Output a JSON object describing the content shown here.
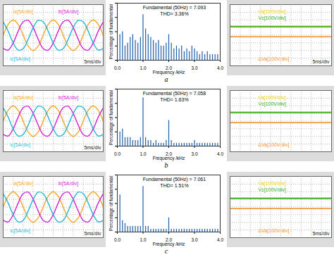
{
  "chart_data": [
    {
      "type": "line",
      "x": [
        0,
        2.5,
        5,
        7.5,
        10,
        12.5,
        15,
        17.5,
        20,
        22.5,
        25,
        27.5,
        30,
        32.5,
        35,
        37.5,
        40,
        42.5,
        45,
        47.5,
        50
      ],
      "series": [
        {
          "name": "ia[5A/div]",
          "color": "#f5a623",
          "values": [
            0,
            7.1,
            10,
            7.1,
            0,
            -7.1,
            -10,
            -7.1,
            0,
            7.1,
            10,
            7.1,
            0,
            -7.1,
            -10,
            -7.1,
            0,
            7.1,
            10,
            7.1,
            0
          ]
        },
        {
          "name": "ib[5A/div]",
          "color": "#d21fd2",
          "values": [
            -8.7,
            -9.7,
            -5,
            2.6,
            8.7,
            9.7,
            5,
            -2.6,
            -8.7,
            -9.7,
            -5,
            2.6,
            8.7,
            9.7,
            5,
            -2.6,
            -8.7,
            -9.7,
            -5,
            2.6,
            8.7
          ]
        },
        {
          "name": "ic[5A/div]",
          "color": "#1fb5d2",
          "values": [
            8.7,
            2.6,
            -5,
            -9.7,
            -8.7,
            -2.6,
            5,
            9.7,
            8.7,
            2.6,
            -5,
            -9.7,
            -8.7,
            -2.6,
            5,
            9.7,
            8.7,
            2.6,
            -5,
            -9.7,
            -8.7
          ]
        }
      ],
      "xlim": [
        0,
        50
      ],
      "ylim": [
        -20,
        20
      ],
      "xticks": [
        0,
        5,
        10,
        15,
        20,
        25,
        30,
        35,
        40,
        45,
        50
      ],
      "yticks": [
        -20,
        -15,
        -10,
        -5,
        0,
        5,
        10,
        15,
        20
      ],
      "grid": true,
      "tick_labels": false,
      "annotations": [
        "5ms/div"
      ]
    },
    {
      "type": "bar",
      "x": [
        0.1,
        0.2,
        0.3,
        0.4,
        0.5,
        0.6,
        0.7,
        0.8,
        0.9,
        1.0,
        1.1,
        1.2,
        1.3,
        1.4,
        1.5,
        1.6,
        1.7,
        1.8,
        1.9,
        2.0,
        2.1,
        2.2,
        2.3,
        2.4,
        2.5,
        2.6,
        2.7,
        2.8,
        2.9,
        3.0,
        3.1,
        3.2,
        3.3,
        3.4,
        3.5,
        3.6,
        3.7,
        3.8,
        3.9
      ],
      "values": [
        0.9,
        1.0,
        0.5,
        0.6,
        0.8,
        0.9,
        0.7,
        0.6,
        0.8,
        1.6,
        1.1,
        0.9,
        0.8,
        0.7,
        0.6,
        0.7,
        0.5,
        0.5,
        0.6,
        0.9,
        0.6,
        0.4,
        0.5,
        0.4,
        0.5,
        0.3,
        0.4,
        0.3,
        0.5,
        0.4,
        0.3,
        0.2,
        0.3,
        0.2,
        0.3,
        0.2,
        0.2,
        0.2,
        0.2
      ],
      "color": "#1f5fa8",
      "xlim": [
        0,
        4
      ],
      "ylim": [
        0,
        2
      ],
      "xticks": [
        0,
        1,
        2,
        3,
        4
      ],
      "yticks": [
        0,
        0.5,
        1,
        1.5,
        2
      ],
      "tick_labels": "x",
      "xlabel": "Frequency /kHz",
      "ylabel": "Percentage of fundamental",
      "annotations": [
        "Fundamental (50Hz) = 7.093",
        "THD= 3.36%"
      ],
      "caption": "a"
    },
    {
      "type": "line",
      "x": [
        0,
        50
      ],
      "series": [
        {
          "name": "Va[100V/div]",
          "color": "#e6c800",
          "values": [
            120,
            120
          ]
        },
        {
          "name": "Vc[100V/div]",
          "color": "#22aa22",
          "values": [
            110,
            110
          ]
        },
        {
          "name": "ΔVa[100V/div]",
          "color": "#f08c1e",
          "values": [
            -20,
            -20
          ]
        }
      ],
      "xlim": [
        0,
        50
      ],
      "ylim": [
        -400,
        400
      ],
      "xticks": [
        0,
        5,
        10,
        15,
        20,
        25,
        30,
        35,
        40,
        45,
        50
      ],
      "yticks": [
        -400,
        -300,
        -200,
        -100,
        0,
        100,
        200,
        300,
        400
      ],
      "grid": true,
      "tick_labels": false,
      "annotations": [
        "5ms/div"
      ]
    },
    {
      "type": "line",
      "x": [
        0,
        2.5,
        5,
        7.5,
        10,
        12.5,
        15,
        17.5,
        20,
        22.5,
        25,
        27.5,
        30,
        32.5,
        35,
        37.5,
        40,
        42.5,
        45,
        47.5,
        50
      ],
      "series": [
        {
          "name": "ia[5A/div]",
          "color": "#f5a623",
          "values": [
            0,
            7.1,
            10,
            7.1,
            0,
            -7.1,
            -10,
            -7.1,
            0,
            7.1,
            10,
            7.1,
            0,
            -7.1,
            -10,
            -7.1,
            0,
            7.1,
            10,
            7.1,
            0
          ]
        },
        {
          "name": "ib[5A/div]",
          "color": "#d21fd2",
          "values": [
            -8.7,
            -9.7,
            -5,
            2.6,
            8.7,
            9.7,
            5,
            -2.6,
            -8.7,
            -9.7,
            -5,
            2.6,
            8.7,
            9.7,
            5,
            -2.6,
            -8.7,
            -9.7,
            -5,
            2.6,
            8.7
          ]
        },
        {
          "name": "ic[5A/div]",
          "color": "#1fb5d2",
          "values": [
            8.7,
            2.6,
            -5,
            -9.7,
            -8.7,
            -2.6,
            5,
            9.7,
            8.7,
            2.6,
            -5,
            -9.7,
            -8.7,
            -2.6,
            5,
            9.7,
            8.7,
            2.6,
            -5,
            -9.7,
            -8.7
          ]
        }
      ],
      "xlim": [
        0,
        50
      ],
      "ylim": [
        -20,
        20
      ],
      "xticks": [
        0,
        5,
        10,
        15,
        20,
        25,
        30,
        35,
        40,
        45,
        50
      ],
      "yticks": [
        -20,
        -15,
        -10,
        -5,
        0,
        5,
        10,
        15,
        20
      ],
      "grid": true,
      "tick_labels": false,
      "annotations": [
        "5ms/div"
      ]
    },
    {
      "type": "bar",
      "x": [
        0.1,
        0.2,
        0.3,
        0.4,
        0.5,
        0.6,
        0.7,
        0.8,
        0.9,
        1.0,
        1.1,
        1.2,
        1.3,
        1.4,
        1.5,
        1.6,
        1.7,
        1.8,
        1.9,
        2.0,
        2.1,
        2.2,
        2.3,
        2.4,
        2.5,
        2.6,
        2.7,
        2.8,
        2.9,
        3.0,
        3.1,
        3.2,
        3.3,
        3.4,
        3.5,
        3.6,
        3.7,
        3.8,
        3.9
      ],
      "values": [
        0.5,
        0.6,
        0.3,
        0.3,
        0.3,
        0.2,
        0.2,
        0.2,
        0.3,
        1.7,
        0.3,
        0.2,
        0.2,
        0.1,
        0.2,
        0.1,
        0.1,
        0.1,
        0.2,
        0.9,
        0.2,
        0.1,
        0.1,
        0.1,
        0.1,
        0.1,
        0.1,
        0.1,
        0.1,
        0.2,
        0.1,
        0.1,
        0.1,
        0.1,
        0.1,
        0.1,
        0.1,
        0.1,
        0.1
      ],
      "color": "#1f5fa8",
      "xlim": [
        0,
        4
      ],
      "ylim": [
        0,
        2
      ],
      "xticks": [
        0,
        1,
        2,
        3,
        4
      ],
      "yticks": [
        0,
        0.5,
        1,
        1.5,
        2
      ],
      "tick_labels": "x",
      "xlabel": "Frequency /kHz",
      "ylabel": "Percentage of fundamental",
      "annotations": [
        "Fundamental (50Hz) = 7.058",
        "THD= 1.63%"
      ],
      "caption": "b"
    },
    {
      "type": "line",
      "x": [
        0,
        50
      ],
      "series": [
        {
          "name": "Va[100V/div]",
          "color": "#e6c800",
          "values": [
            120,
            120
          ]
        },
        {
          "name": "Vc[100V/div]",
          "color": "#22aa22",
          "values": [
            110,
            110
          ]
        },
        {
          "name": "ΔVa[100V/div]",
          "color": "#f08c1e",
          "values": [
            -20,
            -20
          ]
        }
      ],
      "xlim": [
        0,
        50
      ],
      "ylim": [
        -400,
        400
      ],
      "xticks": [
        0,
        5,
        10,
        15,
        20,
        25,
        30,
        35,
        40,
        45,
        50
      ],
      "yticks": [
        -400,
        -300,
        -200,
        -100,
        0,
        100,
        200,
        300,
        400
      ],
      "grid": true,
      "tick_labels": false
    },
    {
      "type": "line",
      "x": [
        0,
        2.5,
        5,
        7.5,
        10,
        12.5,
        15,
        17.5,
        20,
        22.5,
        25,
        27.5,
        30,
        32.5,
        35,
        37.5,
        40,
        42.5,
        45,
        47.5,
        50
      ],
      "series": [
        {
          "name": "ia[5A/div]",
          "color": "#f5a623",
          "values": [
            0,
            7.1,
            10,
            7.1,
            0,
            -7.1,
            -10,
            -7.1,
            0,
            7.1,
            10,
            7.1,
            0,
            -7.1,
            -10,
            -7.1,
            0,
            7.1,
            10,
            7.1,
            0
          ]
        },
        {
          "name": "ib[5A/div]",
          "color": "#d21fd2",
          "values": [
            -8.7,
            -9.7,
            -5,
            2.6,
            8.7,
            9.7,
            5,
            -2.6,
            -8.7,
            -9.7,
            -5,
            2.6,
            8.7,
            9.7,
            5,
            -2.6,
            -8.7,
            -9.7,
            -5,
            2.6,
            8.7
          ]
        },
        {
          "name": "ic[5A/div]",
          "color": "#1fb5d2",
          "values": [
            8.7,
            2.6,
            -5,
            -9.7,
            -8.7,
            -2.6,
            5,
            9.7,
            8.7,
            2.6,
            -5,
            -9.7,
            -8.7,
            -2.6,
            5,
            9.7,
            8.7,
            2.6,
            -5,
            -9.7,
            -8.7
          ]
        }
      ],
      "xlim": [
        0,
        50
      ],
      "ylim": [
        -20,
        20
      ],
      "xticks": [
        0,
        5,
        10,
        15,
        20,
        25,
        30,
        35,
        40,
        45,
        50
      ],
      "yticks": [
        -20,
        -15,
        -10,
        -5,
        0,
        5,
        10,
        15,
        20
      ],
      "grid": true,
      "tick_labels": false,
      "annotations": [
        "5ms/div"
      ]
    },
    {
      "type": "bar",
      "x": [
        0.1,
        0.2,
        0.3,
        0.4,
        0.5,
        0.6,
        0.7,
        0.8,
        0.9,
        1.0,
        1.1,
        1.2,
        1.3,
        1.4,
        1.5,
        1.6,
        1.7,
        1.8,
        1.9,
        2.0,
        2.1,
        2.2,
        2.3,
        2.4,
        2.5,
        2.6,
        2.7,
        2.8,
        2.9,
        3.0,
        3.1,
        3.2,
        3.3,
        3.4,
        3.5,
        3.6,
        3.7,
        3.8,
        3.9
      ],
      "values": [
        1.3,
        0.4,
        0.3,
        0.2,
        0.2,
        0.2,
        0.2,
        0.2,
        0.2,
        1.6,
        0.2,
        0.2,
        0.1,
        0.1,
        0.1,
        0.1,
        0.1,
        0.1,
        0.1,
        0.5,
        0.1,
        0.1,
        0.1,
        0.1,
        0.1,
        0.1,
        0.1,
        0.1,
        0.1,
        0.1,
        0.1,
        0.1,
        0.1,
        0.1,
        0.1,
        0.1,
        0.1,
        0.1,
        0.1
      ],
      "color": "#1f5fa8",
      "xlim": [
        0,
        4
      ],
      "ylim": [
        0,
        2
      ],
      "xticks": [
        0,
        1,
        2,
        3,
        4
      ],
      "yticks": [
        0,
        0.5,
        1,
        1.5,
        2
      ],
      "tick_labels": "x",
      "xlabel": "Frequency /kHz",
      "ylabel": "Percentage of fundamental",
      "annotations": [
        "Fundamental (50Hz) = 7.061",
        "THD= 1.51%"
      ],
      "caption": "c"
    },
    {
      "type": "line",
      "x": [
        0,
        50
      ],
      "series": [
        {
          "name": "Va[100V/div]",
          "color": "#e6c800",
          "values": [
            120,
            120
          ]
        },
        {
          "name": "Vc[100V/div]",
          "color": "#22aa22",
          "values": [
            110,
            110
          ]
        },
        {
          "name": "ΔVa[100V/div]",
          "color": "#f08c1e",
          "values": [
            -20,
            -20
          ]
        }
      ],
      "xlim": [
        0,
        50
      ],
      "ylim": [
        -400,
        400
      ],
      "xticks": [
        0,
        5,
        10,
        15,
        20,
        25,
        30,
        35,
        40,
        45,
        50
      ],
      "yticks": [
        -400,
        -300,
        -200,
        -100,
        0,
        100,
        200,
        300,
        400
      ],
      "grid": true,
      "tick_labels": false,
      "annotations": [
        "5ms/div"
      ]
    }
  ]
}
